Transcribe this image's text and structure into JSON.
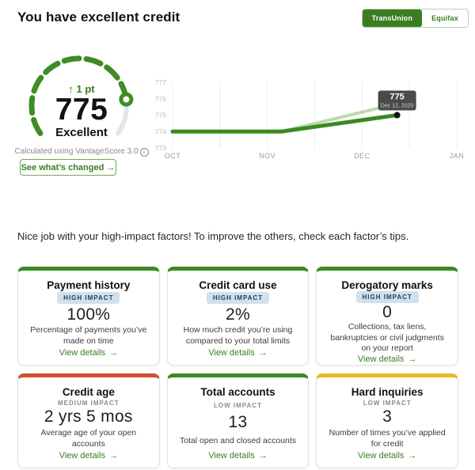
{
  "page": {
    "title": "You have excellent credit",
    "message": "Nice job with your high-impact factors! To improve the others, check each factor’s tips."
  },
  "bureau_toggle": {
    "options": [
      "TransUnion",
      "Equifax"
    ],
    "selected": "TransUnion"
  },
  "score_panel": {
    "change": "↑ 1 pt",
    "score": "775",
    "rating": "Excellent",
    "source": "Calculated using VantageScore 3.0",
    "info_glyph": "i",
    "cta": "See what’s changed →"
  },
  "chart_data": {
    "type": "line",
    "title": "Credit score trend",
    "x_labels": [
      "OCT",
      "NOV",
      "DEC",
      "JAN"
    ],
    "y_ticks": [
      777,
      776,
      775,
      774,
      773
    ],
    "ylim": [
      773,
      777
    ],
    "grid": true,
    "series": [
      {
        "name": "TransUnion score",
        "color": "#3a8a22",
        "width": 5,
        "points": [
          {
            "t": 0,
            "v": 774
          },
          {
            "t": 1.15,
            "v": 774
          },
          {
            "t": 2.37,
            "v": 775
          }
        ]
      },
      {
        "name": "Equifax score",
        "color": "#bcd8ae",
        "width": 4,
        "points": [
          {
            "t": 1.15,
            "v": 774
          },
          {
            "t": 2.48,
            "v": 775.85
          }
        ]
      }
    ],
    "tooltip": {
      "value": "775",
      "date": "Dec 12, 2020",
      "bg": "#4a4a4a"
    }
  },
  "ui": {
    "link_arrow": "→"
  },
  "factors": [
    {
      "title": "Payment history",
      "impact": "HIGH IMPACT",
      "value": "100%",
      "description": "Percentage of payments you’ve made on time",
      "link": "View details",
      "accent": "#3a8a22"
    },
    {
      "title": "Credit card use",
      "impact": "HIGH IMPACT",
      "value": "2%",
      "description": "How much credit you’re using compared to your total limits",
      "link": "View details",
      "accent": "#3a8a22"
    },
    {
      "title": "Derogatory marks",
      "impact": "HIGH IMPACT",
      "value": "0",
      "description": "Collections, tax liens, bankruptcies or civil judgments on your report",
      "link": "View details",
      "accent": "#3a8a22"
    },
    {
      "title": "Credit age",
      "impact": "MEDIUM IMPACT",
      "value": "2 yrs 5 mos",
      "description": "Average age of your open accounts",
      "link": "View details",
      "accent": "#d1502c"
    },
    {
      "title": "Total accounts",
      "impact": "LOW IMPACT",
      "value": "13",
      "description": "Total open and closed accounts",
      "link": "View details",
      "accent": "#3a8a22"
    },
    {
      "title": "Hard inquiries",
      "impact": "LOW IMPACT",
      "value": "3",
      "description": "Number of times you’ve applied for credit",
      "link": "View details",
      "accent": "#eab829"
    }
  ],
  "colors": {
    "primary_green": "#3a7d22",
    "arc_green": "#3f8c25",
    "arc_remainder": "#e2e6e9",
    "gridline": "#ececec",
    "axis_label": "#9b9b9b"
  }
}
